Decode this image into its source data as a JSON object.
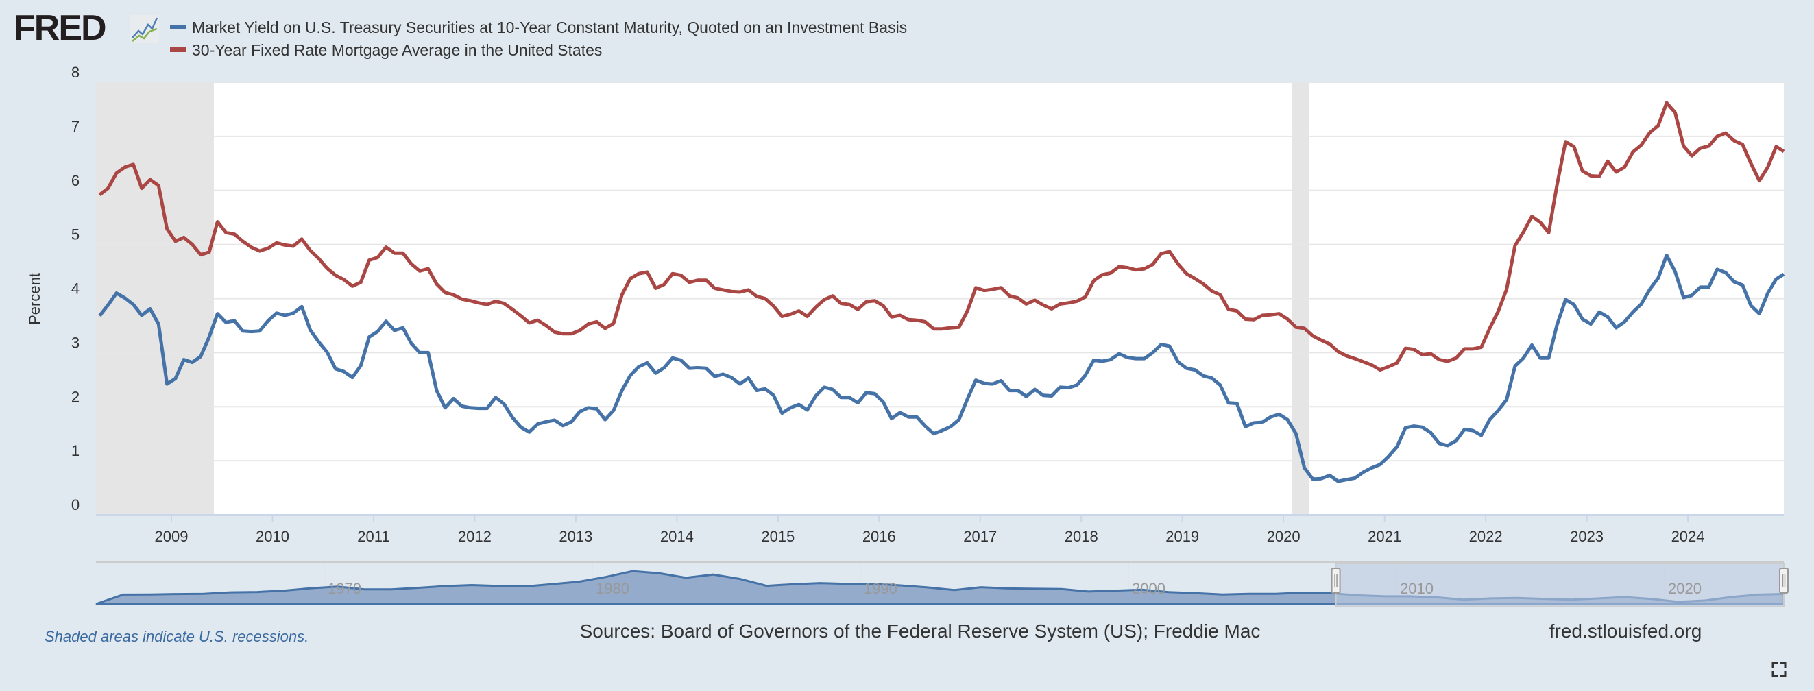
{
  "logo": {
    "text": "FRED",
    "icon": "fred-chart-logo-icon"
  },
  "footer": {
    "recession_note": "Shaded areas indicate U.S. recessions.",
    "sources": "Sources: Board of Governors of the Federal Reserve System (US); Freddie Mac",
    "site": "fred.stlouisfed.org",
    "fullscreen_icon": "fullscreen-icon"
  },
  "colors": {
    "series1": "#4572a7",
    "series2": "#aa4643",
    "recession": "#e5e5e5",
    "background": "#e1e9f0",
    "navigator_fill": "#94abcb",
    "navigator_selected": "#bccae0"
  },
  "chart_data": {
    "type": "line",
    "title": "",
    "xlabel": "",
    "ylabel": "Percent",
    "ylim": [
      0,
      8
    ],
    "yticks": [
      "0",
      "1",
      "2",
      "3",
      "4",
      "5",
      "6",
      "7",
      "8"
    ],
    "xticks": [
      "2009",
      "2010",
      "2011",
      "2012",
      "2013",
      "2014",
      "2015",
      "2016",
      "2017",
      "2018",
      "2019",
      "2020",
      "2021",
      "2022",
      "2023",
      "2024"
    ],
    "xlim": [
      2008.25,
      2024.95
    ],
    "x_start": "2008-04",
    "frequency": "monthly",
    "legend_position": "top-left",
    "recessions": [
      [
        2008.25,
        2009.42
      ],
      [
        2020.08,
        2020.25
      ]
    ],
    "series": [
      {
        "name": "Market Yield on U.S. Treasury Securities at 10-Year Constant Maturity, Quoted on an Investment Basis",
        "values": [
          3.68,
          3.88,
          4.1,
          4.01,
          3.89,
          3.69,
          3.81,
          3.53,
          2.42,
          2.52,
          2.87,
          2.82,
          2.93,
          3.29,
          3.72,
          3.56,
          3.59,
          3.4,
          3.39,
          3.4,
          3.59,
          3.73,
          3.69,
          3.73,
          3.85,
          3.42,
          3.2,
          3.01,
          2.7,
          2.65,
          2.54,
          2.76,
          3.29,
          3.39,
          3.58,
          3.41,
          3.46,
          3.17,
          3.0,
          3.0,
          2.3,
          1.98,
          2.15,
          2.01,
          1.98,
          1.97,
          1.97,
          2.17,
          2.05,
          1.8,
          1.62,
          1.53,
          1.68,
          1.72,
          1.75,
          1.65,
          1.72,
          1.91,
          1.98,
          1.96,
          1.76,
          1.93,
          2.3,
          2.58,
          2.74,
          2.81,
          2.62,
          2.72,
          2.9,
          2.86,
          2.71,
          2.72,
          2.71,
          2.56,
          2.6,
          2.54,
          2.42,
          2.53,
          2.3,
          2.33,
          2.21,
          1.88,
          1.98,
          2.04,
          1.94,
          2.2,
          2.36,
          2.32,
          2.17,
          2.17,
          2.07,
          2.26,
          2.24,
          2.09,
          1.78,
          1.89,
          1.81,
          1.81,
          1.64,
          1.5,
          1.56,
          1.63,
          1.76,
          2.14,
          2.49,
          2.43,
          2.42,
          2.48,
          2.3,
          2.3,
          2.19,
          2.32,
          2.21,
          2.2,
          2.36,
          2.35,
          2.4,
          2.58,
          2.86,
          2.84,
          2.87,
          2.98,
          2.91,
          2.89,
          2.89,
          3.0,
          3.15,
          3.12,
          2.83,
          2.71,
          2.68,
          2.57,
          2.53,
          2.4,
          2.07,
          2.06,
          1.63,
          1.7,
          1.71,
          1.81,
          1.86,
          1.76,
          1.5,
          0.87,
          0.66,
          0.67,
          0.73,
          0.62,
          0.65,
          0.68,
          0.79,
          0.87,
          0.93,
          1.08,
          1.26,
          1.61,
          1.64,
          1.62,
          1.52,
          1.32,
          1.28,
          1.37,
          1.58,
          1.56,
          1.47,
          1.76,
          1.93,
          2.13,
          2.75,
          2.9,
          3.14,
          2.9,
          2.9,
          3.52,
          3.98,
          3.89,
          3.62,
          3.53,
          3.75,
          3.66,
          3.46,
          3.57,
          3.75,
          3.9,
          4.17,
          4.38,
          4.8,
          4.5,
          4.02,
          4.06,
          4.21,
          4.21,
          4.54,
          4.48,
          4.31,
          4.25,
          3.87,
          3.72,
          4.1,
          4.36,
          4.45
        ]
      },
      {
        "name": "30-Year Fixed Rate Mortgage Average in the United States",
        "values": [
          5.92,
          6.04,
          6.32,
          6.43,
          6.48,
          6.04,
          6.2,
          6.09,
          5.29,
          5.06,
          5.13,
          5.0,
          4.81,
          4.86,
          5.42,
          5.22,
          5.19,
          5.06,
          4.95,
          4.88,
          4.93,
          5.03,
          4.99,
          4.97,
          5.1,
          4.89,
          4.74,
          4.56,
          4.43,
          4.35,
          4.23,
          4.3,
          4.71,
          4.76,
          4.95,
          4.84,
          4.84,
          4.64,
          4.51,
          4.55,
          4.27,
          4.11,
          4.07,
          3.99,
          3.96,
          3.92,
          3.89,
          3.95,
          3.91,
          3.8,
          3.68,
          3.55,
          3.6,
          3.5,
          3.38,
          3.35,
          3.35,
          3.41,
          3.53,
          3.57,
          3.45,
          3.54,
          4.07,
          4.37,
          4.46,
          4.49,
          4.19,
          4.26,
          4.46,
          4.43,
          4.3,
          4.34,
          4.34,
          4.19,
          4.16,
          4.13,
          4.12,
          4.16,
          4.04,
          4.0,
          3.86,
          3.67,
          3.71,
          3.77,
          3.67,
          3.84,
          3.98,
          4.05,
          3.91,
          3.89,
          3.8,
          3.94,
          3.96,
          3.87,
          3.66,
          3.69,
          3.61,
          3.6,
          3.57,
          3.44,
          3.44,
          3.46,
          3.47,
          3.77,
          4.2,
          4.15,
          4.17,
          4.2,
          4.05,
          4.01,
          3.9,
          3.97,
          3.88,
          3.81,
          3.9,
          3.92,
          3.95,
          4.03,
          4.33,
          4.44,
          4.47,
          4.59,
          4.57,
          4.53,
          4.55,
          4.63,
          4.83,
          4.87,
          4.64,
          4.46,
          4.37,
          4.27,
          4.14,
          4.07,
          3.8,
          3.77,
          3.62,
          3.61,
          3.69,
          3.7,
          3.72,
          3.62,
          3.47,
          3.45,
          3.31,
          3.23,
          3.16,
          3.02,
          2.94,
          2.89,
          2.83,
          2.77,
          2.68,
          2.74,
          2.81,
          3.08,
          3.06,
          2.96,
          2.98,
          2.87,
          2.84,
          2.9,
          3.07,
          3.07,
          3.1,
          3.45,
          3.76,
          4.17,
          4.98,
          5.23,
          5.52,
          5.41,
          5.22,
          6.11,
          6.9,
          6.81,
          6.36,
          6.27,
          6.26,
          6.54,
          6.34,
          6.43,
          6.71,
          6.84,
          7.07,
          7.2,
          7.62,
          7.44,
          6.82,
          6.64,
          6.78,
          6.82,
          7.0,
          7.06,
          6.92,
          6.85,
          6.5,
          6.18,
          6.43,
          6.81,
          6.72
        ]
      }
    ],
    "navigator": {
      "xticks": [
        "1970",
        "1980",
        "1990",
        "2000",
        "2010",
        "2020"
      ],
      "selected_range": [
        2008.25,
        2024.95
      ],
      "x_start": 1962,
      "frequency": "annual",
      "values": [
        3.95,
        4.0,
        4.19,
        4.28,
        4.93,
        5.07,
        5.64,
        6.67,
        7.35,
        6.16,
        6.21,
        6.85,
        7.56,
        7.99,
        7.61,
        7.42,
        8.41,
        9.43,
        11.43,
        13.92,
        13.01,
        11.1,
        12.46,
        10.62,
        7.67,
        8.39,
        8.85,
        8.49,
        8.55,
        7.86,
        7.01,
        5.87,
        7.09,
        6.57,
        6.44,
        6.35,
        5.26,
        5.65,
        6.03,
        5.02,
        4.61,
        4.01,
        4.27,
        4.29,
        4.8,
        4.63,
        3.66,
        3.26,
        3.22,
        2.78,
        1.8,
        2.35,
        2.54,
        2.14,
        1.84,
        2.33,
        2.91,
        2.14,
        0.89,
        1.45,
        2.95,
        3.96,
        4.21
      ]
    }
  }
}
